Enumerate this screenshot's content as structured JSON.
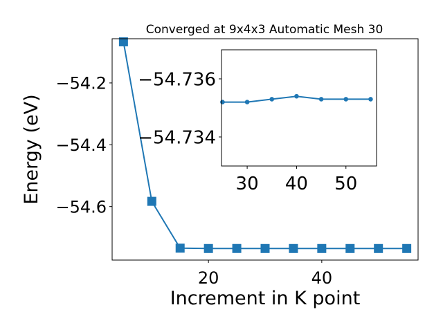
{
  "colors": {
    "series": "#1f77b4",
    "axes": "#000000",
    "background": "#ffffff"
  },
  "chart_data": [
    {
      "type": "line",
      "title": "Converged at 9x4x3 Automatic Mesh 30",
      "xlabel": "Increment in K point",
      "ylabel": "Energy (eV)",
      "xlim": [
        3,
        57
      ],
      "ylim": [
        -54.773,
        -54.057
      ],
      "xticks": [
        20,
        40
      ],
      "xtick_labels": [
        "20",
        "40"
      ],
      "yticks": [
        -54.2,
        -54.4,
        -54.6
      ],
      "ytick_labels": [
        "−54.2",
        "−54.4",
        "−54.6"
      ],
      "marker": "square",
      "grid": false,
      "series": [
        {
          "x": [
            5,
            10,
            15,
            20,
            25,
            30,
            35,
            40,
            45,
            50,
            55
          ],
          "y": [
            -54.067,
            -54.583,
            -54.7345,
            -54.7356,
            -54.7355,
            -54.7356,
            -54.7356,
            -54.7356,
            -54.7356,
            -54.7356,
            -54.7356
          ]
        }
      ]
    },
    {
      "type": "line",
      "title": "",
      "xlabel": "",
      "ylabel": "",
      "xlim": [
        24.8,
        56.2
      ],
      "ylim": [
        -54.733,
        -54.737
      ],
      "xticks": [
        30,
        40,
        50
      ],
      "xtick_labels": [
        "30",
        "40",
        "50"
      ],
      "yticks": [
        -54.736,
        -54.734
      ],
      "ytick_labels": [
        "−54.736",
        "−54.734"
      ],
      "marker": "circle",
      "grid": false,
      "series": [
        {
          "x": [
            25,
            30,
            35,
            40,
            45,
            50,
            55
          ],
          "y": [
            -54.7352,
            -54.7352,
            -54.7353,
            -54.7354,
            -54.7353,
            -54.7353,
            -54.7353
          ]
        }
      ]
    }
  ]
}
